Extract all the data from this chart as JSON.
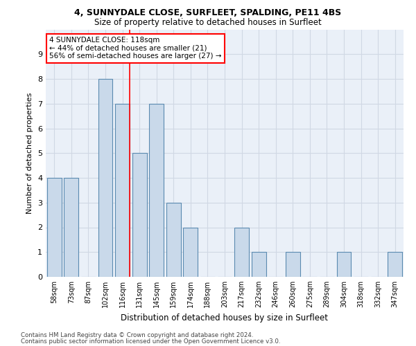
{
  "title1": "4, SUNNYDALE CLOSE, SURFLEET, SPALDING, PE11 4BS",
  "title2": "Size of property relative to detached houses in Surfleet",
  "xlabel": "Distribution of detached houses by size in Surfleet",
  "ylabel": "Number of detached properties",
  "categories": [
    "58sqm",
    "73sqm",
    "87sqm",
    "102sqm",
    "116sqm",
    "131sqm",
    "145sqm",
    "159sqm",
    "174sqm",
    "188sqm",
    "203sqm",
    "217sqm",
    "232sqm",
    "246sqm",
    "260sqm",
    "275sqm",
    "289sqm",
    "304sqm",
    "318sqm",
    "332sqm",
    "347sqm"
  ],
  "values": [
    4,
    4,
    0,
    8,
    7,
    5,
    7,
    3,
    2,
    0,
    0,
    2,
    1,
    0,
    1,
    0,
    0,
    1,
    0,
    0,
    1
  ],
  "bar_color": "#c9d9ea",
  "bar_edge_color": "#5a8ab0",
  "red_line_index": 4,
  "annotation_text": "4 SUNNYDALE CLOSE: 118sqm\n← 44% of detached houses are smaller (21)\n56% of semi-detached houses are larger (27) →",
  "annotation_box_color": "white",
  "annotation_box_edge_color": "red",
  "ylim": [
    0,
    10
  ],
  "yticks": [
    0,
    1,
    2,
    3,
    4,
    5,
    6,
    7,
    8,
    9,
    10
  ],
  "grid_color": "#d0d8e4",
  "background_color": "#eaf0f8",
  "footer1": "Contains HM Land Registry data © Crown copyright and database right 2024.",
  "footer2": "Contains public sector information licensed under the Open Government Licence v3.0."
}
